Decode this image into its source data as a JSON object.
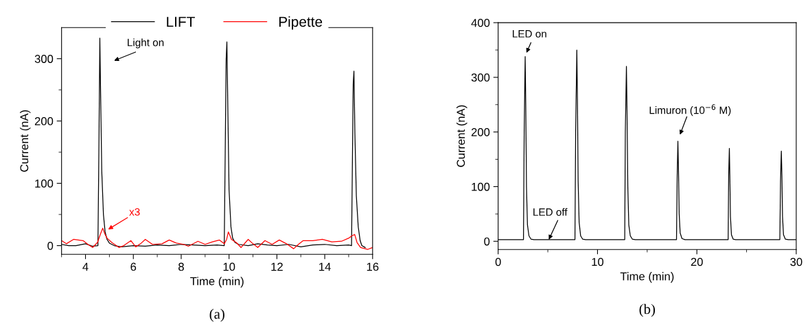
{
  "chart_data": [
    {
      "type": "line",
      "xlabel": "Time (min)",
      "ylabel": "Current (nA)",
      "xlim": [
        3,
        16
      ],
      "ylim": [
        -14,
        350
      ],
      "xticks": [
        4,
        6,
        8,
        10,
        12,
        14,
        16,
        {
          "value": 3,
          "label": null
        },
        {
          "value": 5,
          "label": null
        },
        {
          "value": 7,
          "label": null
        },
        {
          "value": 9,
          "label": null
        },
        {
          "value": 11,
          "label": null
        },
        {
          "value": 13,
          "label": null
        },
        {
          "value": 15,
          "label": null
        }
      ],
      "yticks": [
        0,
        100,
        200,
        300,
        {
          "value": 50,
          "label": null
        },
        {
          "value": 150,
          "label": null
        },
        {
          "value": 250,
          "label": null
        }
      ],
      "legend": "top",
      "grid": false,
      "line_style": "solid",
      "marker": "none",
      "series": [
        {
          "name": "LIFT",
          "color": "#000000",
          "x": [
            3.0,
            3.3,
            3.6,
            4.0,
            4.3,
            4.52,
            4.56,
            4.6,
            4.63,
            4.68,
            4.75,
            4.82,
            4.9,
            5.0,
            5.2,
            5.5,
            6.0,
            6.5,
            7.0,
            7.5,
            8.0,
            8.5,
            9.0,
            9.5,
            9.8,
            9.84,
            9.88,
            9.91,
            9.95,
            10.0,
            10.08,
            10.15,
            10.25,
            10.4,
            10.8,
            11.2,
            11.6,
            12.0,
            12.5,
            13.0,
            13.5,
            14.0,
            14.5,
            15.0,
            15.12,
            15.16,
            15.19,
            15.22,
            15.26,
            15.32,
            15.4,
            15.48,
            15.55,
            15.69
          ],
          "values": [
            2,
            0,
            0,
            3,
            -1,
            0,
            150,
            333,
            250,
            120,
            50,
            22,
            10,
            4,
            0,
            -2,
            0,
            -1,
            1,
            0,
            2,
            1,
            0,
            1,
            0,
            150,
            300,
            327,
            220,
            90,
            30,
            12,
            5,
            2,
            0,
            3,
            1,
            0,
            2,
            -2,
            1,
            2,
            0,
            1,
            0,
            150,
            260,
            280,
            180,
            80,
            30,
            8,
            0,
            -3
          ]
        },
        {
          "name": "Pipette",
          "color": "#ff0000",
          "x": [
            3.0,
            3.2,
            3.5,
            3.9,
            4.1,
            4.3,
            4.5,
            4.62,
            4.72,
            4.82,
            4.9,
            5.1,
            5.4,
            5.6,
            5.9,
            6.1,
            6.3,
            6.5,
            6.8,
            7.2,
            7.5,
            7.8,
            8.1,
            8.3,
            8.7,
            9.0,
            9.3,
            9.6,
            9.8,
            9.9,
            9.97,
            10.05,
            10.1,
            10.3,
            10.5,
            10.8,
            11.0,
            11.2,
            11.5,
            11.8,
            12.1,
            12.4,
            12.7,
            12.9,
            13.1,
            13.5,
            13.9,
            14.3,
            14.7,
            15.0,
            15.15,
            15.25,
            15.35,
            15.5,
            15.8,
            16.0
          ],
          "values": [
            8,
            3,
            10,
            8,
            2,
            -3,
            5,
            18,
            28,
            18,
            12,
            5,
            -3,
            0,
            8,
            -2,
            3,
            10,
            2,
            3,
            9,
            4,
            2,
            -1,
            7,
            2,
            6,
            9,
            3,
            10,
            22,
            15,
            10,
            5,
            -3,
            10,
            3,
            -3,
            8,
            2,
            9,
            3,
            -5,
            2,
            8,
            8,
            10,
            6,
            7,
            12,
            16,
            18,
            5,
            -3,
            -6,
            -3
          ]
        }
      ],
      "annotations": [
        "Light on",
        "x3",
        "(a)"
      ]
    },
    {
      "type": "line",
      "xlabel": "Time (min)",
      "ylabel": "Current (nA)",
      "xlim": [
        0,
        30
      ],
      "ylim": [
        -15,
        400
      ],
      "xticks": [
        0,
        10,
        20,
        30,
        {
          "value": 5,
          "label": null
        },
        {
          "value": 15,
          "label": null
        },
        {
          "value": 25,
          "label": null
        }
      ],
      "yticks": [
        0,
        100,
        200,
        300,
        400,
        {
          "value": 50,
          "label": null
        },
        {
          "value": 150,
          "label": null
        },
        {
          "value": 250,
          "label": null
        },
        {
          "value": 350,
          "label": null
        }
      ],
      "grid": false,
      "line_style": "solid",
      "marker": "none",
      "series": [
        {
          "color": "#000000",
          "x": [
            0,
            2.55,
            2.62,
            2.72,
            2.78,
            2.85,
            2.95,
            3.1,
            3.3,
            3.6,
            5,
            7.73,
            7.8,
            7.92,
            7.98,
            8.05,
            8.15,
            8.3,
            8.5,
            8.8,
            10,
            12.74,
            12.8,
            12.91,
            12.97,
            13.05,
            13.15,
            13.3,
            13.5,
            13.8,
            16,
            17.95,
            18.02,
            18.09,
            18.15,
            18.22,
            18.32,
            18.5,
            18.8,
            21,
            23.15,
            23.2,
            23.27,
            23.32,
            23.38,
            23.48,
            23.65,
            23.9,
            26,
            28.35,
            28.42,
            28.5,
            28.56,
            28.62,
            28.72,
            28.9,
            29.2,
            30
          ],
          "values": [
            3,
            3,
            200,
            338,
            250,
            100,
            30,
            10,
            4,
            3,
            3,
            3,
            200,
            350,
            260,
            110,
            35,
            10,
            4,
            3,
            3,
            3,
            200,
            320,
            240,
            100,
            30,
            10,
            4,
            3,
            3,
            3,
            120,
            183,
            130,
            50,
            15,
            5,
            3,
            3,
            3,
            120,
            170,
            120,
            45,
            12,
            4,
            3,
            3,
            3,
            110,
            165,
            120,
            45,
            12,
            4,
            3,
            3
          ]
        }
      ],
      "annotations": [
        "LED on",
        {
          "text": "LED off",
          "x": 5.1,
          "y": 3
        },
        "Limuron (10$^{−6}$ M)",
        "(b)"
      ]
    }
  ]
}
